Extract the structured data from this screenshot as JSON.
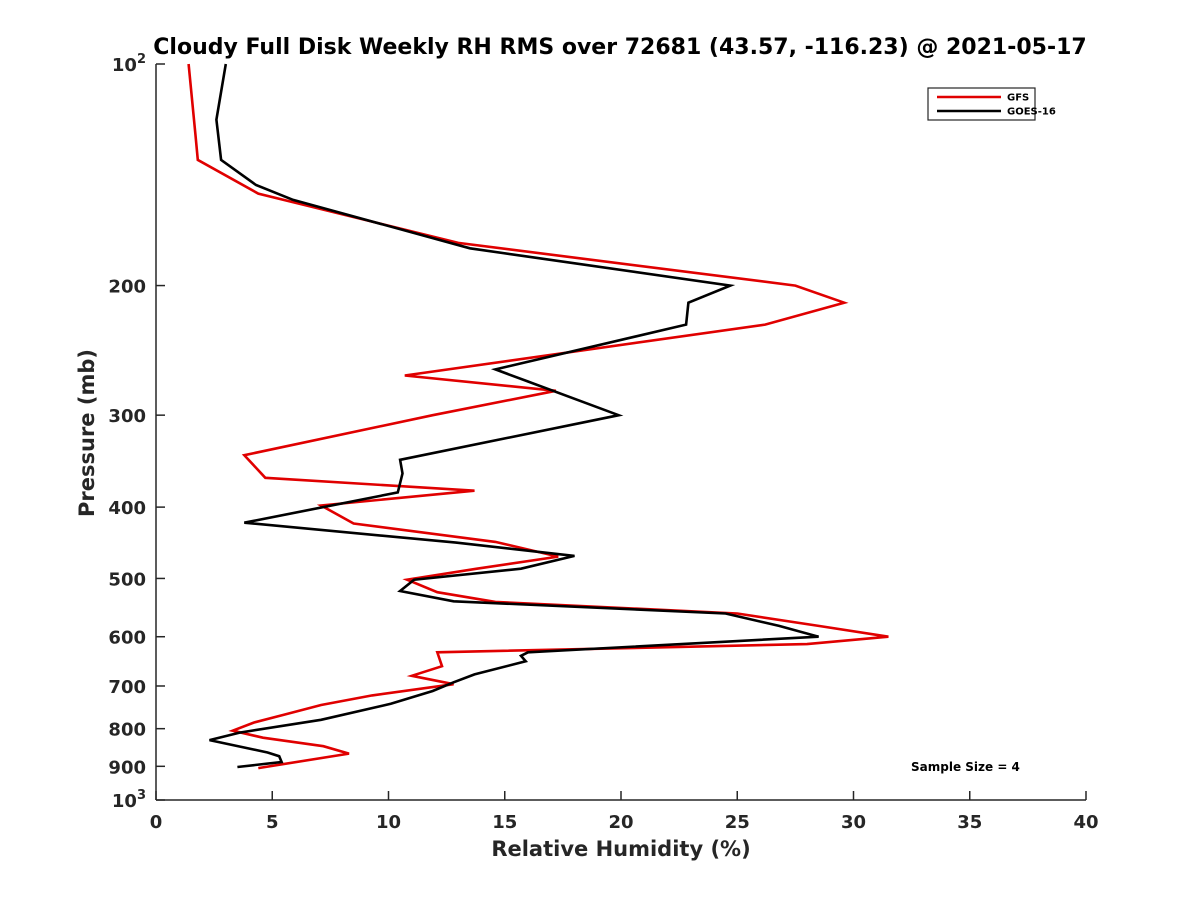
{
  "chart_data": {
    "type": "line",
    "title": "Cloudy Full Disk Weekly RH RMS over 72681 (43.57, -116.23) @ 2021-05-17",
    "xlabel": "Relative Humidity (%)",
    "ylabel": "Pressure (mb)",
    "xlim": [
      0,
      40
    ],
    "ylim": [
      100,
      1000
    ],
    "y_scale": "log",
    "y_reversed": true,
    "x_ticks": [
      "0",
      "5",
      "10",
      "15",
      "20",
      "25",
      "30",
      "35",
      "40"
    ],
    "y_ticks": [
      {
        "value": 100,
        "base": "10",
        "exp": "2"
      },
      {
        "value": 200,
        "label": "200"
      },
      {
        "value": 300,
        "label": "300"
      },
      {
        "value": 400,
        "label": "400"
      },
      {
        "value": 500,
        "label": "500"
      },
      {
        "value": 600,
        "label": "600"
      },
      {
        "value": 700,
        "label": "700"
      },
      {
        "value": 800,
        "label": "800"
      },
      {
        "value": 900,
        "label": "900"
      },
      {
        "value": 1000,
        "base": "10",
        "exp": "3"
      }
    ],
    "legend_position": "top-right",
    "grid": false,
    "series": [
      {
        "name": "GFS",
        "color": "#e00000",
        "points": [
          [
            1.4,
            100
          ],
          [
            1.7,
            125
          ],
          [
            1.8,
            135
          ],
          [
            4.4,
            150
          ],
          [
            13.0,
            175
          ],
          [
            27.5,
            200
          ],
          [
            29.6,
            211
          ],
          [
            26.2,
            226
          ],
          [
            10.7,
            265
          ],
          [
            17.2,
            278
          ],
          [
            11.9,
            300
          ],
          [
            3.8,
            340
          ],
          [
            4.7,
            365
          ],
          [
            13.7,
            380
          ],
          [
            7.1,
            398
          ],
          [
            8.5,
            421
          ],
          [
            14.6,
            446
          ],
          [
            17.3,
            467
          ],
          [
            13.8,
            485
          ],
          [
            10.8,
            502
          ],
          [
            12.1,
            522
          ],
          [
            14.6,
            538
          ],
          [
            25.0,
            558
          ],
          [
            28.5,
            580
          ],
          [
            31.5,
            600
          ],
          [
            28.0,
            614
          ],
          [
            12.1,
            630
          ],
          [
            12.3,
            658
          ],
          [
            11.0,
            678
          ],
          [
            12.8,
            696
          ],
          [
            9.3,
            721
          ],
          [
            7.1,
            743
          ],
          [
            5.5,
            766
          ],
          [
            4.2,
            785
          ],
          [
            3.3,
            805
          ],
          [
            4.6,
            823
          ],
          [
            7.2,
            845
          ],
          [
            8.3,
            865
          ],
          [
            4.4,
            905
          ]
        ]
      },
      {
        "name": "GOES-16",
        "color": "#000000",
        "points": [
          [
            3.0,
            100
          ],
          [
            2.6,
            119
          ],
          [
            2.8,
            135
          ],
          [
            4.3,
            146
          ],
          [
            5.9,
            153
          ],
          [
            13.5,
            178
          ],
          [
            24.7,
            200
          ],
          [
            22.9,
            211
          ],
          [
            22.8,
            226
          ],
          [
            14.6,
            260
          ],
          [
            16.0,
            270
          ],
          [
            19.9,
            300
          ],
          [
            10.5,
            345
          ],
          [
            10.6,
            360
          ],
          [
            10.4,
            382
          ],
          [
            3.8,
            420
          ],
          [
            12.9,
            447
          ],
          [
            18.0,
            466
          ],
          [
            15.7,
            485
          ],
          [
            11.1,
            502
          ],
          [
            10.5,
            520
          ],
          [
            12.8,
            537
          ],
          [
            24.5,
            558
          ],
          [
            26.8,
            580
          ],
          [
            28.5,
            600
          ],
          [
            16.0,
            630
          ],
          [
            15.7,
            637
          ],
          [
            15.9,
            648
          ],
          [
            13.7,
            675
          ],
          [
            12.8,
            692
          ],
          [
            11.9,
            711
          ],
          [
            10.1,
            740
          ],
          [
            7.1,
            778
          ],
          [
            3.6,
            810
          ],
          [
            2.3,
            829
          ],
          [
            4.8,
            862
          ],
          [
            5.3,
            872
          ],
          [
            5.4,
            888
          ],
          [
            3.5,
            902
          ]
        ]
      }
    ],
    "annotation": "Sample Size = 4"
  }
}
